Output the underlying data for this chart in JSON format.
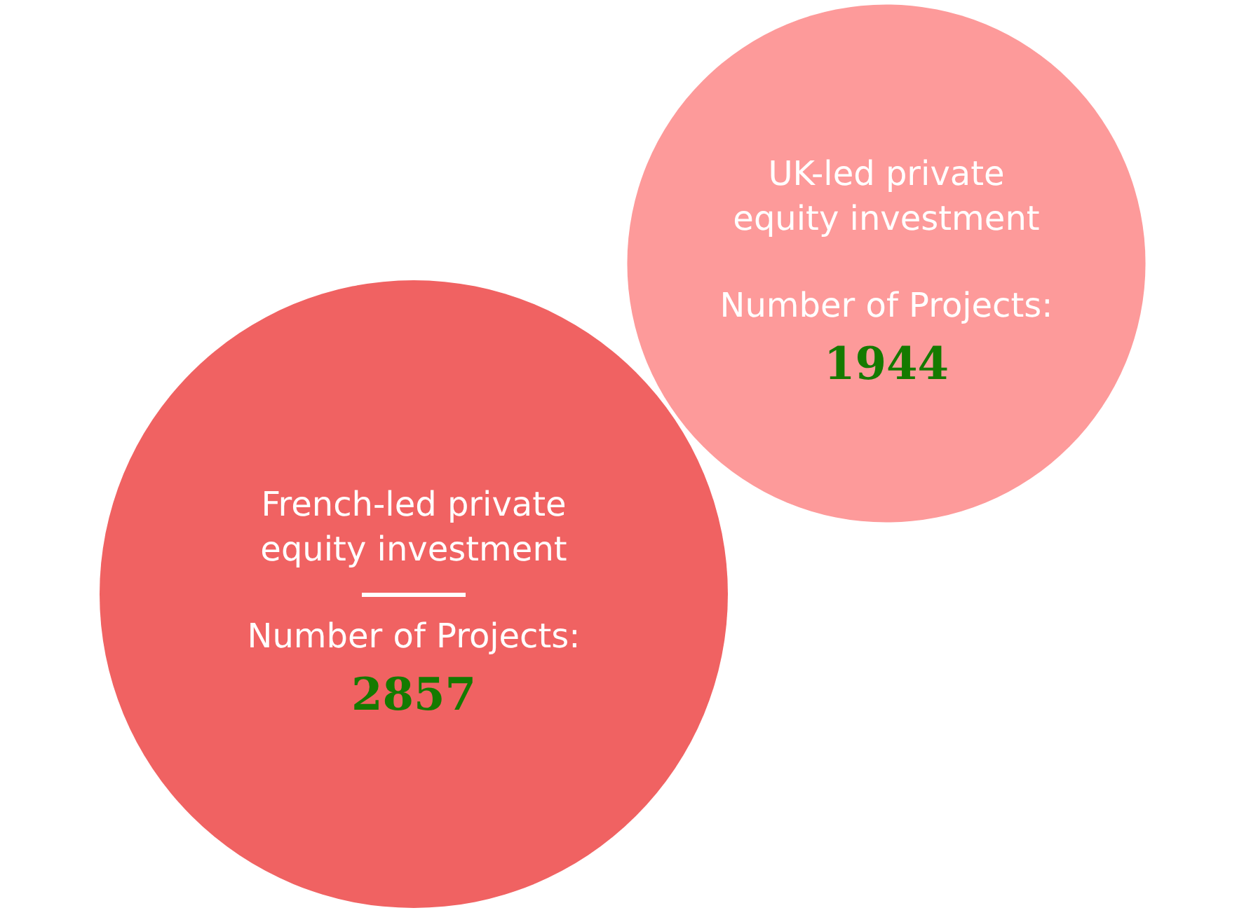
{
  "chart_data": {
    "type": "other",
    "categories": [
      "French-led private equity investment",
      "UK-led private equity investment"
    ],
    "values": [
      2857,
      1944
    ],
    "colors": [
      "#f06262",
      "#fd9a9a"
    ],
    "ylabel": "Number of Projects:",
    "data_labels": true
  }
}
